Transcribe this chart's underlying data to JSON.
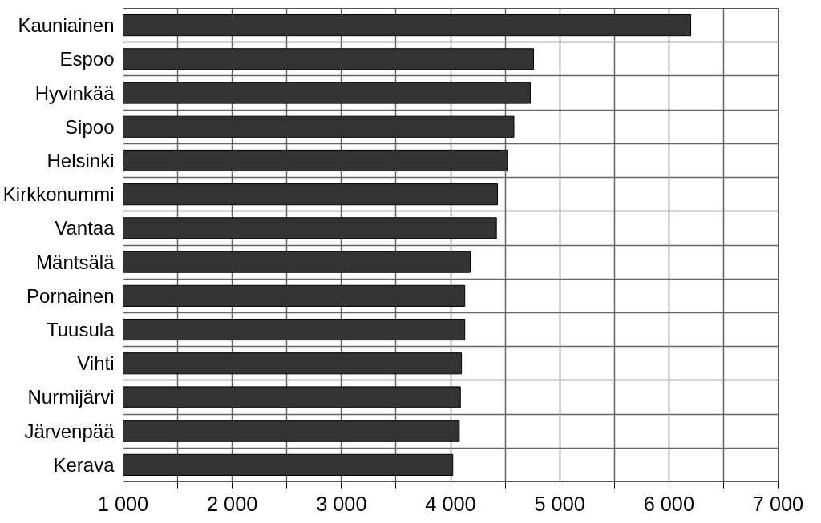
{
  "chart_data": {
    "type": "bar",
    "orientation": "horizontal",
    "categories": [
      "Kauniainen",
      "Espoo",
      "Hyvinkää",
      "Sipoo",
      "Helsinki",
      "Kirkkonummi",
      "Vantaa",
      "Mäntsälä",
      "Pornainen",
      "Tuusula",
      "Vihti",
      "Nurmijärvi",
      "Järvenpää",
      "Kerava"
    ],
    "values": [
      6200,
      4760,
      4730,
      4580,
      4520,
      4430,
      4420,
      4180,
      4130,
      4130,
      4100,
      4090,
      4080,
      4020
    ],
    "color": "#333333",
    "xlim": [
      1000,
      7000
    ],
    "xticks": [
      {
        "value": 1000,
        "label": "1 000"
      },
      {
        "value": 1500,
        "label": null
      },
      {
        "value": 2000,
        "label": "2 000"
      },
      {
        "value": 2500,
        "label": null
      },
      {
        "value": 3000,
        "label": "3 000"
      },
      {
        "value": 3500,
        "label": null
      },
      {
        "value": 4000,
        "label": "4 000"
      },
      {
        "value": 4500,
        "label": null
      },
      {
        "value": 5000,
        "label": "5 000"
      },
      {
        "value": 5500,
        "label": null
      },
      {
        "value": 6000,
        "label": "6 000"
      },
      {
        "value": 6500,
        "label": null
      },
      {
        "value": 7000,
        "label": "7 000"
      }
    ],
    "grid": true
  }
}
